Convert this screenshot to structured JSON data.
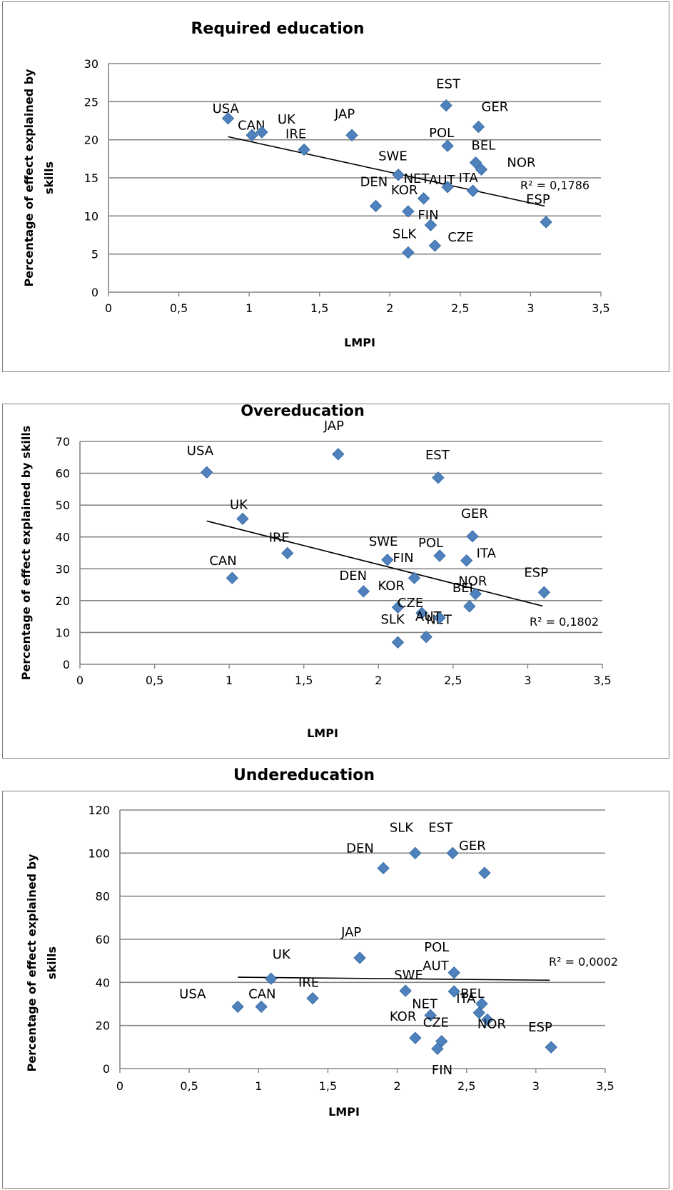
{
  "colors": {
    "marker": "#4f81bd",
    "marker_edge": "#3a6ea5",
    "grid": "#868686",
    "trend": "#000000"
  },
  "chart_data": [
    {
      "type": "scatter",
      "title": "Required education",
      "xlabel": "LMPI",
      "ylabel": "Percentage of effect explained by skills",
      "xlim": [
        0,
        3.5
      ],
      "ylim": [
        0,
        30
      ],
      "xticks": [
        "0",
        "0,5",
        "1",
        "1,5",
        "2",
        "2,5",
        "3",
        "3,5"
      ],
      "yticks": [
        "0",
        "5",
        "10",
        "15",
        "20",
        "25",
        "30"
      ],
      "grid": "horizontal",
      "r2_label": "R² = 0,1786",
      "trendline": {
        "x": [
          0.85,
          3.1
        ],
        "y": [
          20.4,
          11.3
        ]
      },
      "points": [
        {
          "label": "USA",
          "x": 0.85,
          "y": 22.8
        },
        {
          "label": "CAN",
          "x": 1.02,
          "y": 20.6
        },
        {
          "label": "UK",
          "x": 1.09,
          "y": 21.0
        },
        {
          "label": "IRE",
          "x": 1.39,
          "y": 18.7
        },
        {
          "label": "JAP",
          "x": 1.73,
          "y": 20.6
        },
        {
          "label": "DEN",
          "x": 1.9,
          "y": 11.3
        },
        {
          "label": "SWE",
          "x": 2.06,
          "y": 15.4
        },
        {
          "label": "SLK",
          "x": 2.13,
          "y": 5.2
        },
        {
          "label": "KOR",
          "x": 2.13,
          "y": 10.6
        },
        {
          "label": "NET",
          "x": 2.24,
          "y": 12.3
        },
        {
          "label": "FIN",
          "x": 2.29,
          "y": 8.8
        },
        {
          "label": "CZE",
          "x": 2.32,
          "y": 6.1
        },
        {
          "label": "EST",
          "x": 2.4,
          "y": 24.5
        },
        {
          "label": "POL",
          "x": 2.41,
          "y": 19.2
        },
        {
          "label": "AUT",
          "x": 2.41,
          "y": 13.8
        },
        {
          "label": "ITA",
          "x": 2.59,
          "y": 13.3
        },
        {
          "label": "BEL",
          "x": 2.61,
          "y": 17.0
        },
        {
          "label": "GER",
          "x": 2.63,
          "y": 21.7
        },
        {
          "label": "NOR",
          "x": 2.65,
          "y": 16.1
        },
        {
          "label": "ESP",
          "x": 3.11,
          "y": 9.2
        }
      ]
    },
    {
      "type": "scatter",
      "title": "Overeducation",
      "xlabel": "LMPI",
      "ylabel": "Percentage of effect explained by skills",
      "xlim": [
        0,
        3.5
      ],
      "ylim": [
        0,
        70
      ],
      "xticks": [
        "0",
        "0,5",
        "1",
        "1,5",
        "2",
        "2,5",
        "3",
        "3,5"
      ],
      "yticks": [
        "0",
        "10",
        "20",
        "30",
        "40",
        "50",
        "60",
        "70"
      ],
      "grid": "horizontal",
      "r2_label": "R² = 0,1802",
      "trendline": {
        "x": [
          0.85,
          3.1
        ],
        "y": [
          45.0,
          18.3
        ]
      },
      "points": [
        {
          "label": "USA",
          "x": 0.85,
          "y": 60.3
        },
        {
          "label": "CAN",
          "x": 1.02,
          "y": 27.1
        },
        {
          "label": "UK",
          "x": 1.09,
          "y": 45.7
        },
        {
          "label": "IRE",
          "x": 1.39,
          "y": 34.9
        },
        {
          "label": "JAP",
          "x": 1.73,
          "y": 66.0
        },
        {
          "label": "DEN",
          "x": 1.9,
          "y": 22.9
        },
        {
          "label": "SWE",
          "x": 2.06,
          "y": 32.8
        },
        {
          "label": "SLK",
          "x": 2.13,
          "y": 6.9
        },
        {
          "label": "KOR",
          "x": 2.13,
          "y": 17.9
        },
        {
          "label": "FIN",
          "x": 2.24,
          "y": 27.1
        },
        {
          "label": "CZE",
          "x": 2.29,
          "y": 16.1
        },
        {
          "label": "NET",
          "x": 2.32,
          "y": 8.6
        },
        {
          "label": "EST",
          "x": 2.4,
          "y": 58.6
        },
        {
          "label": "POL",
          "x": 2.41,
          "y": 34.1
        },
        {
          "label": "AUT",
          "x": 2.41,
          "y": 14.6
        },
        {
          "label": "ITA",
          "x": 2.59,
          "y": 32.6
        },
        {
          "label": "BEL",
          "x": 2.61,
          "y": 18.2
        },
        {
          "label": "GER",
          "x": 2.63,
          "y": 40.2
        },
        {
          "label": "NOR",
          "x": 2.65,
          "y": 22.1
        },
        {
          "label": "ESP",
          "x": 3.11,
          "y": 22.6
        }
      ]
    },
    {
      "type": "scatter",
      "title": "Undereducation",
      "xlabel": "LMPI",
      "ylabel": "Percentage of effect explained by skills",
      "xlim": [
        0,
        3.5
      ],
      "ylim": [
        0,
        120
      ],
      "xticks": [
        "0",
        "0,5",
        "1",
        "1,5",
        "2",
        "2,5",
        "3",
        "3,5"
      ],
      "yticks": [
        "0",
        "20",
        "40",
        "60",
        "80",
        "100",
        "120"
      ],
      "grid": "horizontal",
      "r2_label": "R² = 0,0002",
      "trendline": {
        "x": [
          0.85,
          3.1
        ],
        "y": [
          42.4,
          41.0
        ]
      },
      "points": [
        {
          "label": "USA",
          "x": 0.85,
          "y": 28.7
        },
        {
          "label": "CAN",
          "x": 1.02,
          "y": 28.7
        },
        {
          "label": "UK",
          "x": 1.09,
          "y": 41.7
        },
        {
          "label": "IRE",
          "x": 1.39,
          "y": 32.6
        },
        {
          "label": "JAP",
          "x": 1.73,
          "y": 51.4
        },
        {
          "label": "DEN",
          "x": 1.9,
          "y": 93.0
        },
        {
          "label": "SWE",
          "x": 2.06,
          "y": 36.1
        },
        {
          "label": "SLK",
          "x": 2.13,
          "y": 100.0
        },
        {
          "label": "KOR",
          "x": 2.13,
          "y": 14.2
        },
        {
          "label": "NET",
          "x": 2.24,
          "y": 24.7
        },
        {
          "label": "FIN",
          "x": 2.29,
          "y": 9.2
        },
        {
          "label": "CZE",
          "x": 2.32,
          "y": 12.7
        },
        {
          "label": "EST",
          "x": 2.4,
          "y": 100.0
        },
        {
          "label": "POL",
          "x": 2.41,
          "y": 44.5
        },
        {
          "label": "AUT",
          "x": 2.41,
          "y": 35.8
        },
        {
          "label": "ITA",
          "x": 2.59,
          "y": 25.9
        },
        {
          "label": "BEL",
          "x": 2.61,
          "y": 30.1
        },
        {
          "label": "GER",
          "x": 2.63,
          "y": 90.8
        },
        {
          "label": "NOR",
          "x": 2.65,
          "y": 22.7
        },
        {
          "label": "ESP",
          "x": 3.11,
          "y": 9.9
        }
      ]
    }
  ]
}
